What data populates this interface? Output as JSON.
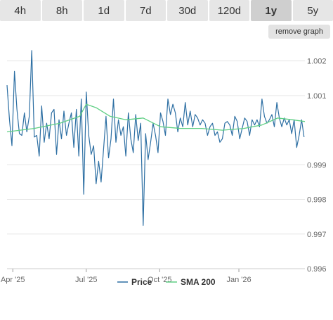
{
  "timeframes": [
    {
      "label": "4h",
      "active": false
    },
    {
      "label": "8h",
      "active": false
    },
    {
      "label": "1d",
      "active": false
    },
    {
      "label": "7d",
      "active": false
    },
    {
      "label": "30d",
      "active": false
    },
    {
      "label": "120d",
      "active": false
    },
    {
      "label": "1y",
      "active": true
    },
    {
      "label": "5y",
      "active": false
    }
  ],
  "remove_graph_label": "remove graph",
  "colors": {
    "price": "#2d6fa3",
    "sma": "#5fcf84",
    "grid": "#e6e6e6",
    "tab_bg": "#e6e6e6",
    "tab_active": "#cfcfcf"
  },
  "chart_data": {
    "type": "line",
    "x_ticks": [
      "Apr '25",
      "Jul '25",
      "Oct '25",
      "Jan '26"
    ],
    "y_ticks": [
      "0.996",
      "0.997",
      "0.998",
      "0.999",
      "1.001",
      "1.002"
    ],
    "ylim": [
      0.996,
      1.0025
    ],
    "xlim": [
      "2025-03-29",
      "2026-03-25"
    ],
    "series": [
      {
        "name": "Price",
        "dates": [
          "2025-03-29",
          "2025-04-01",
          "2025-04-04",
          "2025-04-07",
          "2025-04-10",
          "2025-04-13",
          "2025-04-16",
          "2025-04-19",
          "2025-04-22",
          "2025-04-25",
          "2025-04-28",
          "2025-05-01",
          "2025-05-04",
          "2025-05-07",
          "2025-05-10",
          "2025-05-13",
          "2025-05-16",
          "2025-05-19",
          "2025-05-22",
          "2025-05-25",
          "2025-05-28",
          "2025-05-31",
          "2025-06-03",
          "2025-06-06",
          "2025-06-09",
          "2025-06-12",
          "2025-06-15",
          "2025-06-18",
          "2025-06-21",
          "2025-06-24",
          "2025-06-27",
          "2025-06-30",
          "2025-07-03",
          "2025-07-06",
          "2025-07-09",
          "2025-07-12",
          "2025-07-15",
          "2025-07-18",
          "2025-07-21",
          "2025-07-24",
          "2025-07-27",
          "2025-07-30",
          "2025-08-02",
          "2025-08-05",
          "2025-08-08",
          "2025-08-11",
          "2025-08-14",
          "2025-08-17",
          "2025-08-20",
          "2025-08-23",
          "2025-08-26",
          "2025-08-29",
          "2025-09-01",
          "2025-09-04",
          "2025-09-07",
          "2025-09-10",
          "2025-09-13",
          "2025-09-16",
          "2025-09-19",
          "2025-09-22",
          "2025-09-25",
          "2025-09-28",
          "2025-10-01",
          "2025-10-04",
          "2025-10-07",
          "2025-10-10",
          "2025-10-13",
          "2025-10-16",
          "2025-10-19",
          "2025-10-22",
          "2025-10-25",
          "2025-10-28",
          "2025-10-31",
          "2025-11-03",
          "2025-11-06",
          "2025-11-09",
          "2025-11-12",
          "2025-11-15",
          "2025-11-18",
          "2025-11-21",
          "2025-11-24",
          "2025-11-27",
          "2025-11-30",
          "2025-12-03",
          "2025-12-06",
          "2025-12-09",
          "2025-12-12",
          "2025-12-15",
          "2025-12-18",
          "2025-12-21",
          "2025-12-24",
          "2025-12-27",
          "2025-12-30",
          "2026-01-02",
          "2026-01-05",
          "2026-01-08",
          "2026-01-11",
          "2026-01-14",
          "2026-01-17",
          "2026-01-20",
          "2026-01-23",
          "2026-01-26",
          "2026-01-29",
          "2026-02-01",
          "2026-02-04",
          "2026-02-07",
          "2026-02-10",
          "2026-02-13",
          "2026-02-16",
          "2026-02-19",
          "2026-02-22",
          "2026-02-25",
          "2026-02-28",
          "2026-03-03",
          "2026-03-06",
          "2026-03-09",
          "2026-03-12",
          "2026-03-15",
          "2026-03-18",
          "2026-03-21",
          "2026-03-24"
        ],
        "values": [
          1.0013,
          1.0003,
          0.99955,
          1.0017,
          1.0006,
          0.9999,
          0.99985,
          1.0005,
          0.99995,
          1.0004,
          1.0023,
          0.9998,
          0.99985,
          0.99925,
          1.0007,
          0.99965,
          1.0002,
          0.99975,
          1.0005,
          1.0006,
          0.9993,
          1.0003,
          0.99975,
          1.00055,
          0.99985,
          1.0002,
          1.0005,
          0.9995,
          1.0006,
          0.99925,
          1.0009,
          0.99815,
          1.0011,
          0.99985,
          0.9993,
          0.99955,
          0.99845,
          0.9991,
          0.9985,
          0.99945,
          1.0004,
          0.9992,
          0.99975,
          1.0009,
          0.99965,
          1.0003,
          0.99985,
          1.0001,
          0.99925,
          1.0005,
          0.99975,
          0.99935,
          1.00045,
          0.9997,
          1.0002,
          0.99725,
          0.9999,
          0.99915,
          0.99965,
          1.0002,
          0.99985,
          0.99935,
          1.0005,
          1.00025,
          0.99985,
          1.0009,
          1.00045,
          1.00075,
          1.0005,
          0.99995,
          1.00035,
          1.0001,
          1.0008,
          1.00015,
          1.00055,
          1.0001,
          1.00045,
          1.00035,
          1.00015,
          1.0003,
          1.0002,
          0.99985,
          1.0001,
          1.0002,
          0.99985,
          0.99995,
          0.99965,
          0.99975,
          1.0002,
          1.00025,
          1.00015,
          0.99985,
          1.0004,
          1.00025,
          0.99975,
          1.00005,
          1.00035,
          1.00025,
          0.99985,
          1.0003,
          1.00015,
          1.0003,
          1.0001,
          1.0009,
          1.0004,
          1.0002,
          1.0003,
          1.00045,
          1.0001,
          1.0008,
          1.00035,
          1.0001,
          1.00035,
          1.00015,
          1.0003,
          0.9999,
          1.0003,
          0.9995,
          0.99985,
          1.0003,
          0.9998
        ]
      },
      {
        "name": "SMA 200",
        "dates": [
          "2025-03-29",
          "2025-05-01",
          "2025-06-01",
          "2025-06-25",
          "2025-07-03",
          "2025-07-15",
          "2025-08-01",
          "2025-08-20",
          "2025-09-10",
          "2025-10-01",
          "2025-10-25",
          "2025-11-20",
          "2025-12-15",
          "2026-01-10",
          "2026-02-01",
          "2026-02-20",
          "2026-03-10",
          "2026-03-25"
        ],
        "values": [
          0.99995,
          1.00005,
          1.0002,
          1.0004,
          1.00075,
          1.00065,
          1.0004,
          1.0003,
          1.00035,
          1.0001,
          1.00005,
          1.00005,
          1.0,
          1.00005,
          1.00015,
          1.00035,
          1.0003,
          1.00025
        ]
      }
    ],
    "legend_position": "bottom-center",
    "grid": true
  }
}
